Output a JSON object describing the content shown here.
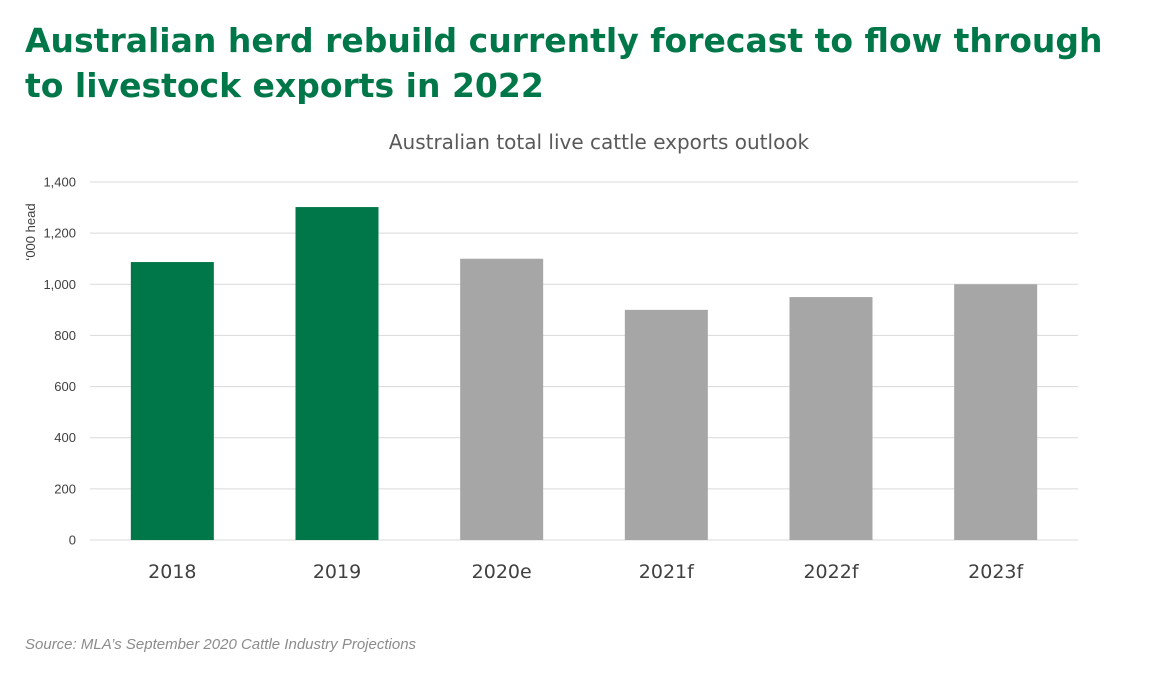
{
  "headline": "Australian herd rebuild currently forecast to flow through to livestock exports in 2022",
  "source": "Source: MLA’s September 2020 Cattle Industry Projections",
  "colors": {
    "actual": "#007749",
    "forecast": "#a6a6a6",
    "headline": "#007749",
    "gridline": "#d9d9d9"
  },
  "chart_data": {
    "type": "bar",
    "title": "Australian total live cattle exports outlook",
    "xlabel": "",
    "ylabel": "‘000 head",
    "categories": [
      "2018",
      "2019",
      "2020e",
      "2021f",
      "2022f",
      "2023f"
    ],
    "values": [
      1087,
      1302,
      1100,
      900,
      950,
      1000
    ],
    "bar_status": [
      "actual",
      "actual",
      "forecast",
      "forecast",
      "forecast",
      "forecast"
    ],
    "ylim": [
      0,
      1400
    ],
    "yticks": [
      0,
      200,
      400,
      600,
      800,
      1000,
      1200,
      1400
    ],
    "ytick_labels": [
      "0",
      "200",
      "400",
      "600",
      "800",
      "1,000",
      "1,200",
      "1,400"
    ],
    "grid": true,
    "legend": "none"
  }
}
